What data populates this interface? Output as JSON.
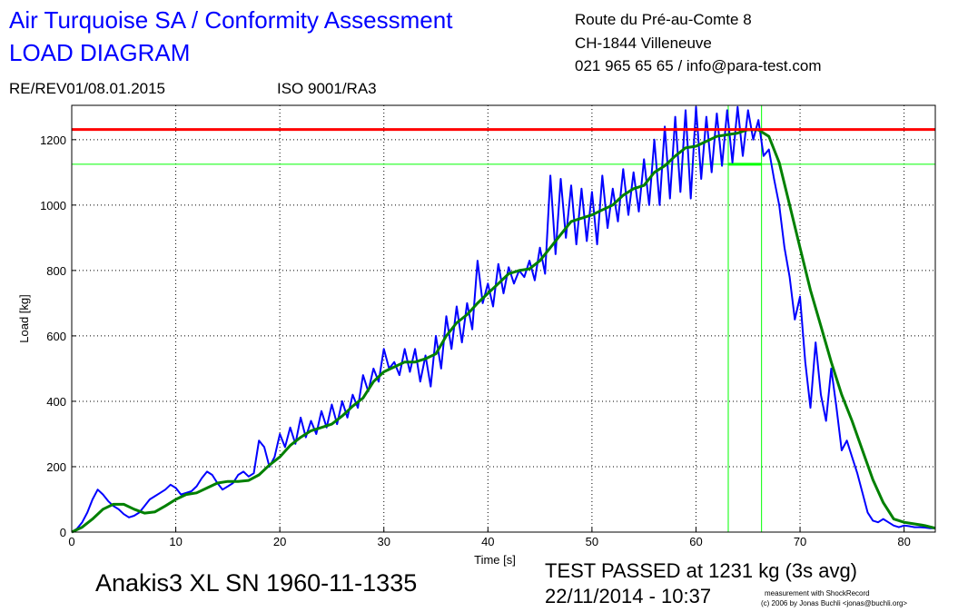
{
  "chart_data": {
    "type": "line",
    "title": "Air Turquoise SA / Conformity Assessment",
    "subtitle": "LOAD DIAGRAM",
    "address": [
      "Route du Pré-au-Comte 8",
      "CH-1844 Villeneuve",
      "021 965 65 65 / info@para-test.com"
    ],
    "revision": "RE/REV01/08.01.2015",
    "standard": "ISO 9001/RA3",
    "device": "Anakis3 XL SN 1960-11-1335",
    "result": "TEST PASSED at 1231 kg (3s avg)",
    "date": "22/11/2014 - 10:37",
    "credits": [
      "measurement with ShockRecord",
      "(c) 2006 by Jonas Buchli <jonas@buchli.org>"
    ],
    "x_label": "Time [s]",
    "y_label": "Load [kg]",
    "xlim": [
      0,
      83
    ],
    "ylim": [
      0,
      1305
    ],
    "xticks": [
      0,
      10,
      20,
      30,
      40,
      50,
      60,
      70,
      80
    ],
    "yticks": [
      0,
      200,
      400,
      600,
      800,
      1000,
      1200
    ],
    "grid": true,
    "series": [
      {
        "color": "#0000ff",
        "x": [
          0,
          0.5,
          1,
          1.5,
          2,
          2.5,
          3,
          3.5,
          4,
          4.5,
          5,
          5.5,
          6,
          6.5,
          7,
          7.5,
          8,
          8.5,
          9,
          9.5,
          10,
          10.5,
          11,
          11.5,
          12,
          12.5,
          13,
          13.5,
          14,
          14.5,
          15,
          15.5,
          16,
          16.5,
          17,
          17.5,
          18,
          18.5,
          19,
          19.5,
          20,
          20.5,
          21,
          21.5,
          22,
          22.5,
          23,
          23.5,
          24,
          24.5,
          25,
          25.5,
          26,
          26.5,
          27,
          27.5,
          28,
          28.5,
          29,
          29.5,
          30,
          30.5,
          31,
          31.5,
          32,
          32.5,
          33,
          33.5,
          34,
          34.5,
          35,
          35.5,
          36,
          36.5,
          37,
          37.5,
          38,
          38.5,
          39,
          39.5,
          40,
          40.5,
          41,
          41.5,
          42,
          42.5,
          43,
          43.5,
          44,
          44.5,
          45,
          45.5,
          46,
          46.5,
          47,
          47.5,
          48,
          48.5,
          49,
          49.5,
          50,
          50.5,
          51,
          51.5,
          52,
          52.5,
          53,
          53.5,
          54,
          54.5,
          55,
          55.5,
          56,
          56.5,
          57,
          57.5,
          58,
          58.5,
          59,
          59.5,
          60,
          60.5,
          61,
          61.5,
          62,
          62.5,
          63,
          63.5,
          64,
          64.5,
          65,
          65.5,
          66,
          66.5,
          67,
          67.5,
          68,
          68.5,
          69,
          69.5,
          70,
          70.5,
          71,
          71.5,
          72,
          72.5,
          73,
          73.5,
          74,
          74.5,
          75,
          75.5,
          76,
          76.5,
          77,
          77.5,
          78,
          78.5,
          79,
          79.5,
          80,
          80.5,
          81,
          81.5,
          82,
          82.5,
          83
        ],
        "values": [
          0,
          10,
          30,
          60,
          100,
          130,
          115,
          95,
          80,
          70,
          55,
          45,
          50,
          60,
          80,
          100,
          110,
          120,
          130,
          145,
          135,
          115,
          120,
          125,
          140,
          165,
          185,
          175,
          150,
          130,
          140,
          150,
          175,
          185,
          170,
          180,
          280,
          260,
          200,
          230,
          300,
          260,
          320,
          270,
          350,
          290,
          340,
          300,
          370,
          320,
          390,
          330,
          400,
          350,
          420,
          380,
          480,
          430,
          500,
          460,
          560,
          500,
          520,
          480,
          560,
          490,
          560,
          460,
          540,
          445,
          600,
          500,
          660,
          560,
          690,
          580,
          700,
          620,
          830,
          700,
          760,
          690,
          820,
          730,
          810,
          760,
          800,
          780,
          830,
          770,
          870,
          790,
          1090,
          850,
          1080,
          900,
          1060,
          880,
          1050,
          890,
          1040,
          880,
          1090,
          930,
          1050,
          950,
          1110,
          970,
          1100,
          980,
          1140,
          1000,
          1200,
          1000,
          1240,
          1020,
          1270,
          1040,
          1290,
          1020,
          1300,
          1080,
          1270,
          1100,
          1280,
          1120,
          1290,
          1130,
          1300,
          1150,
          1290,
          1200,
          1260,
          1150,
          1170,
          1080,
          1000,
          870,
          780,
          650,
          720,
          520,
          380,
          580,
          420,
          340,
          500,
          380,
          250,
          280,
          230,
          180,
          120,
          60,
          35,
          30,
          40,
          30,
          20,
          15,
          20,
          18,
          15,
          15,
          14,
          12,
          12
        ]
      },
      {
        "color": "#008000",
        "x": [
          0,
          1,
          2,
          3,
          4,
          5,
          6,
          7,
          8,
          9,
          10,
          11,
          12,
          13,
          14,
          15,
          16,
          17,
          18,
          19,
          20,
          21,
          22,
          23,
          24,
          25,
          26,
          27,
          28,
          29,
          30,
          31,
          32,
          33,
          34,
          35,
          36,
          37,
          38,
          39,
          40,
          41,
          42,
          43,
          44,
          45,
          46,
          47,
          48,
          49,
          50,
          51,
          52,
          53,
          54,
          55,
          56,
          57,
          58,
          59,
          60,
          61,
          62,
          63,
          64,
          65,
          66,
          67,
          68,
          69,
          70,
          71,
          72,
          73,
          74,
          75,
          76,
          77,
          78,
          79,
          80,
          81,
          82,
          83
        ],
        "values": [
          0,
          15,
          40,
          70,
          85,
          85,
          70,
          58,
          62,
          80,
          100,
          115,
          120,
          135,
          150,
          155,
          155,
          158,
          175,
          205,
          230,
          265,
          290,
          310,
          320,
          330,
          355,
          385,
          410,
          460,
          490,
          505,
          520,
          520,
          530,
          545,
          600,
          640,
          665,
          700,
          730,
          760,
          790,
          800,
          805,
          830,
          870,
          910,
          950,
          960,
          970,
          985,
          1000,
          1030,
          1050,
          1060,
          1100,
          1120,
          1150,
          1175,
          1180,
          1195,
          1210,
          1215,
          1220,
          1231,
          1230,
          1210,
          1130,
          1000,
          870,
          740,
          630,
          520,
          420,
          340,
          250,
          160,
          90,
          40,
          30,
          25,
          20,
          12
        ]
      }
    ],
    "hlines": [
      {
        "value": 1231,
        "color": "#ff0000",
        "width": 3
      },
      {
        "value": 1125,
        "color": "#00ff00",
        "width": 1
      }
    ],
    "vlines": [
      {
        "value": 63.1,
        "color": "#00ff00"
      },
      {
        "value": 66.3,
        "color": "#00ff00"
      }
    ]
  }
}
